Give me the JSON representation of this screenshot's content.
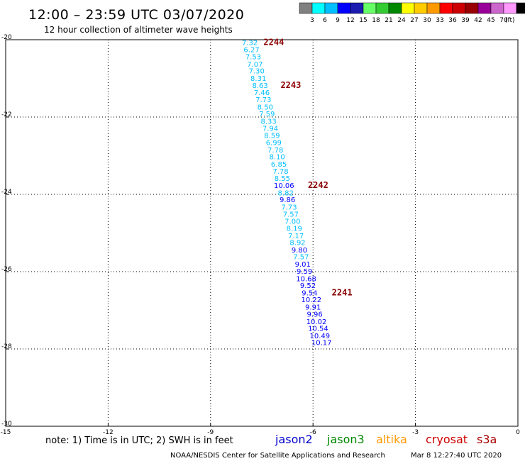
{
  "header": {
    "title": "12:00 – 23:59 UTC 03/07/2020",
    "subtitle": "12 hour collection of altimeter wave heights"
  },
  "color_legend": {
    "unit": "(ft)",
    "colors": [
      "#808080",
      "#00ffff",
      "#00bfff",
      "#0000ff",
      "#1b1bb0",
      "#66ff66",
      "#33cc33",
      "#008800",
      "#ffff00",
      "#ffcc00",
      "#ff9900",
      "#ff0000",
      "#cc0000",
      "#990000",
      "#990099",
      "#cc66cc",
      "#ff99ff",
      "#000000"
    ],
    "labels": [
      "3",
      "6",
      "9",
      "12",
      "15",
      "18",
      "21",
      "24",
      "27",
      "30",
      "33",
      "36",
      "39",
      "42",
      "45",
      "70"
    ]
  },
  "chart_data": {
    "type": "scatter",
    "title": "12:00 – 23:59 UTC 03/07/2020",
    "subtitle": "12 hour collection of altimeter wave heights",
    "xlim": [
      -15,
      0
    ],
    "ylim": [
      -30,
      -20
    ],
    "x_ticks": [
      "-15",
      "-12",
      "-9",
      "-6",
      "-3",
      "0"
    ],
    "y_ticks": [
      "-20",
      "-22",
      "-24",
      "-26",
      "-28",
      "-30"
    ],
    "grid": true,
    "points": [
      {
        "x": -7.85,
        "y": -20.06,
        "value": "7.32",
        "color": "#00bfff"
      },
      {
        "x": -7.8,
        "y": -20.25,
        "value": "6.27",
        "color": "#00bfff"
      },
      {
        "x": -7.75,
        "y": -20.43,
        "value": "7.53",
        "color": "#00bfff"
      },
      {
        "x": -7.7,
        "y": -20.62,
        "value": "7.07",
        "color": "#00bfff"
      },
      {
        "x": -7.65,
        "y": -20.8,
        "value": "7.30",
        "color": "#00bfff"
      },
      {
        "x": -7.6,
        "y": -20.99,
        "value": "8.31",
        "color": "#00bfff"
      },
      {
        "x": -7.55,
        "y": -21.17,
        "value": "8.63",
        "color": "#00bfff"
      },
      {
        "x": -7.5,
        "y": -21.36,
        "value": "7.46",
        "color": "#00bfff"
      },
      {
        "x": -7.45,
        "y": -21.54,
        "value": "7.73",
        "color": "#00bfff"
      },
      {
        "x": -7.4,
        "y": -21.73,
        "value": "8.50",
        "color": "#00bfff"
      },
      {
        "x": -7.35,
        "y": -21.91,
        "value": "7.59",
        "color": "#00bfff"
      },
      {
        "x": -7.3,
        "y": -22.1,
        "value": "8.33",
        "color": "#00bfff"
      },
      {
        "x": -7.25,
        "y": -22.28,
        "value": "7.94",
        "color": "#00bfff"
      },
      {
        "x": -7.2,
        "y": -22.47,
        "value": "8.59",
        "color": "#00bfff"
      },
      {
        "x": -7.15,
        "y": -22.65,
        "value": "6.99",
        "color": "#00bfff"
      },
      {
        "x": -7.1,
        "y": -22.84,
        "value": "7.78",
        "color": "#00bfff"
      },
      {
        "x": -7.05,
        "y": -23.02,
        "value": "8.10",
        "color": "#00bfff"
      },
      {
        "x": -7.0,
        "y": -23.21,
        "value": "6.85",
        "color": "#00bfff"
      },
      {
        "x": -6.95,
        "y": -23.39,
        "value": "7.78",
        "color": "#00bfff"
      },
      {
        "x": -6.9,
        "y": -23.58,
        "value": "8.55",
        "color": "#00bfff"
      },
      {
        "x": -6.85,
        "y": -23.76,
        "value": "10.06",
        "color": "#0000ff"
      },
      {
        "x": -6.8,
        "y": -23.95,
        "value": "8.82",
        "color": "#00bfff"
      },
      {
        "x": -6.75,
        "y": -24.13,
        "value": "9.86",
        "color": "#0000ff"
      },
      {
        "x": -6.7,
        "y": -24.32,
        "value": "7.73",
        "color": "#00bfff"
      },
      {
        "x": -6.65,
        "y": -24.5,
        "value": "7.57",
        "color": "#00bfff"
      },
      {
        "x": -6.6,
        "y": -24.69,
        "value": "7.00",
        "color": "#00bfff"
      },
      {
        "x": -6.55,
        "y": -24.87,
        "value": "8.19",
        "color": "#00bfff"
      },
      {
        "x": -6.5,
        "y": -25.06,
        "value": "7.17",
        "color": "#00bfff"
      },
      {
        "x": -6.45,
        "y": -25.24,
        "value": "8.92",
        "color": "#00bfff"
      },
      {
        "x": -6.4,
        "y": -25.43,
        "value": "9.80",
        "color": "#0000ff"
      },
      {
        "x": -6.35,
        "y": -25.61,
        "value": "7.57",
        "color": "#00bfff"
      },
      {
        "x": -6.3,
        "y": -25.8,
        "value": "9.01",
        "color": "#0000ff"
      },
      {
        "x": -6.25,
        "y": -25.98,
        "value": "9.59",
        "color": "#0000ff"
      },
      {
        "x": -6.2,
        "y": -26.17,
        "value": "10.68",
        "color": "#0000ff"
      },
      {
        "x": -6.15,
        "y": -26.35,
        "value": "9.52",
        "color": "#0000ff"
      },
      {
        "x": -6.1,
        "y": -26.54,
        "value": "9.54",
        "color": "#0000ff"
      },
      {
        "x": -6.05,
        "y": -26.72,
        "value": "10.22",
        "color": "#0000ff"
      },
      {
        "x": -6.0,
        "y": -26.91,
        "value": "9.91",
        "color": "#0000ff"
      },
      {
        "x": -5.95,
        "y": -27.09,
        "value": "9.96",
        "color": "#0000ff"
      },
      {
        "x": -5.9,
        "y": -27.28,
        "value": "10.02",
        "color": "#0000ff"
      },
      {
        "x": -5.85,
        "y": -27.46,
        "value": "10.54",
        "color": "#0000ff"
      },
      {
        "x": -5.8,
        "y": -27.65,
        "value": "10.49",
        "color": "#0000ff"
      },
      {
        "x": -5.75,
        "y": -27.83,
        "value": "10.17",
        "color": "#0000ff"
      }
    ],
    "pass_labels": [
      {
        "label": "2244",
        "x": -7.15,
        "y": -20.06
      },
      {
        "label": "2243",
        "x": -6.65,
        "y": -21.17
      },
      {
        "label": "2242",
        "x": -5.85,
        "y": -23.76
      },
      {
        "label": "2241",
        "x": -5.15,
        "y": -26.54
      }
    ]
  },
  "footer": {
    "note": "note:  1) Time is in UTC;  2) SWH is in feet",
    "satellites": [
      {
        "name": "jason2",
        "color": "#0000cc"
      },
      {
        "name": "jason3",
        "color": "#008800"
      },
      {
        "name": "altika",
        "color": "#ff9900"
      },
      {
        "name": "cryosat",
        "color": "#cc0000"
      },
      {
        "name": "s3a",
        "color": "#aa0000"
      }
    ],
    "credit": "NOAA/NESDIS Center for Satellite Applications and Research",
    "timestamp": "Mar  8 12:27:40 UTC 2020"
  }
}
